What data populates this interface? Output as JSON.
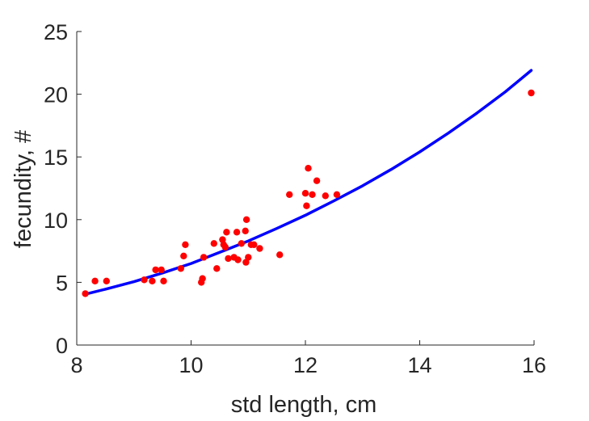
{
  "chart_data": {
    "type": "scatter",
    "xlabel": "std length, cm",
    "ylabel": "fecundity, #",
    "xlim": [
      8,
      16
    ],
    "ylim": [
      0,
      25
    ],
    "xticks": [
      8,
      10,
      12,
      14,
      16
    ],
    "yticks": [
      0,
      5,
      10,
      15,
      20,
      25
    ],
    "grid": false,
    "series": [
      {
        "type": "scatter",
        "color": "#ff0000",
        "points": [
          [
            8.15,
            4.1
          ],
          [
            8.32,
            5.1
          ],
          [
            8.52,
            5.1
          ],
          [
            9.18,
            5.2
          ],
          [
            9.32,
            5.1
          ],
          [
            9.38,
            6.0
          ],
          [
            9.48,
            6.0
          ],
          [
            9.52,
            5.1
          ],
          [
            9.82,
            6.1
          ],
          [
            9.87,
            7.1
          ],
          [
            9.9,
            8.0
          ],
          [
            10.18,
            5.0
          ],
          [
            10.2,
            5.3
          ],
          [
            10.22,
            7.0
          ],
          [
            10.4,
            8.1
          ],
          [
            10.45,
            6.1
          ],
          [
            10.55,
            8.4
          ],
          [
            10.57,
            8.0
          ],
          [
            10.6,
            7.8
          ],
          [
            10.62,
            9.0
          ],
          [
            10.65,
            6.9
          ],
          [
            10.75,
            7.0
          ],
          [
            10.8,
            9.0
          ],
          [
            10.82,
            6.8
          ],
          [
            10.88,
            8.1
          ],
          [
            10.95,
            9.1
          ],
          [
            10.96,
            6.6
          ],
          [
            10.97,
            10.0
          ],
          [
            11.0,
            7.0
          ],
          [
            11.05,
            8.0
          ],
          [
            11.1,
            8.0
          ],
          [
            11.2,
            7.7
          ],
          [
            11.55,
            7.2
          ],
          [
            11.72,
            12.0
          ],
          [
            12.0,
            12.1
          ],
          [
            12.02,
            11.1
          ],
          [
            12.05,
            14.1
          ],
          [
            12.12,
            12.0
          ],
          [
            12.2,
            13.1
          ],
          [
            12.35,
            11.9
          ],
          [
            12.55,
            12.0
          ],
          [
            15.95,
            20.1
          ]
        ]
      },
      {
        "type": "line",
        "color": "#0000ff",
        "points": [
          [
            8.15,
            4.05
          ],
          [
            8.5,
            4.45
          ],
          [
            9.0,
            5.05
          ],
          [
            9.5,
            5.75
          ],
          [
            10.0,
            6.5
          ],
          [
            10.5,
            7.4
          ],
          [
            11.0,
            8.3
          ],
          [
            11.5,
            9.3
          ],
          [
            12.0,
            10.35
          ],
          [
            12.5,
            11.5
          ],
          [
            13.0,
            12.7
          ],
          [
            13.5,
            14.0
          ],
          [
            14.0,
            15.4
          ],
          [
            14.5,
            16.9
          ],
          [
            15.0,
            18.5
          ],
          [
            15.5,
            20.2
          ],
          [
            15.95,
            21.9
          ]
        ]
      }
    ]
  }
}
